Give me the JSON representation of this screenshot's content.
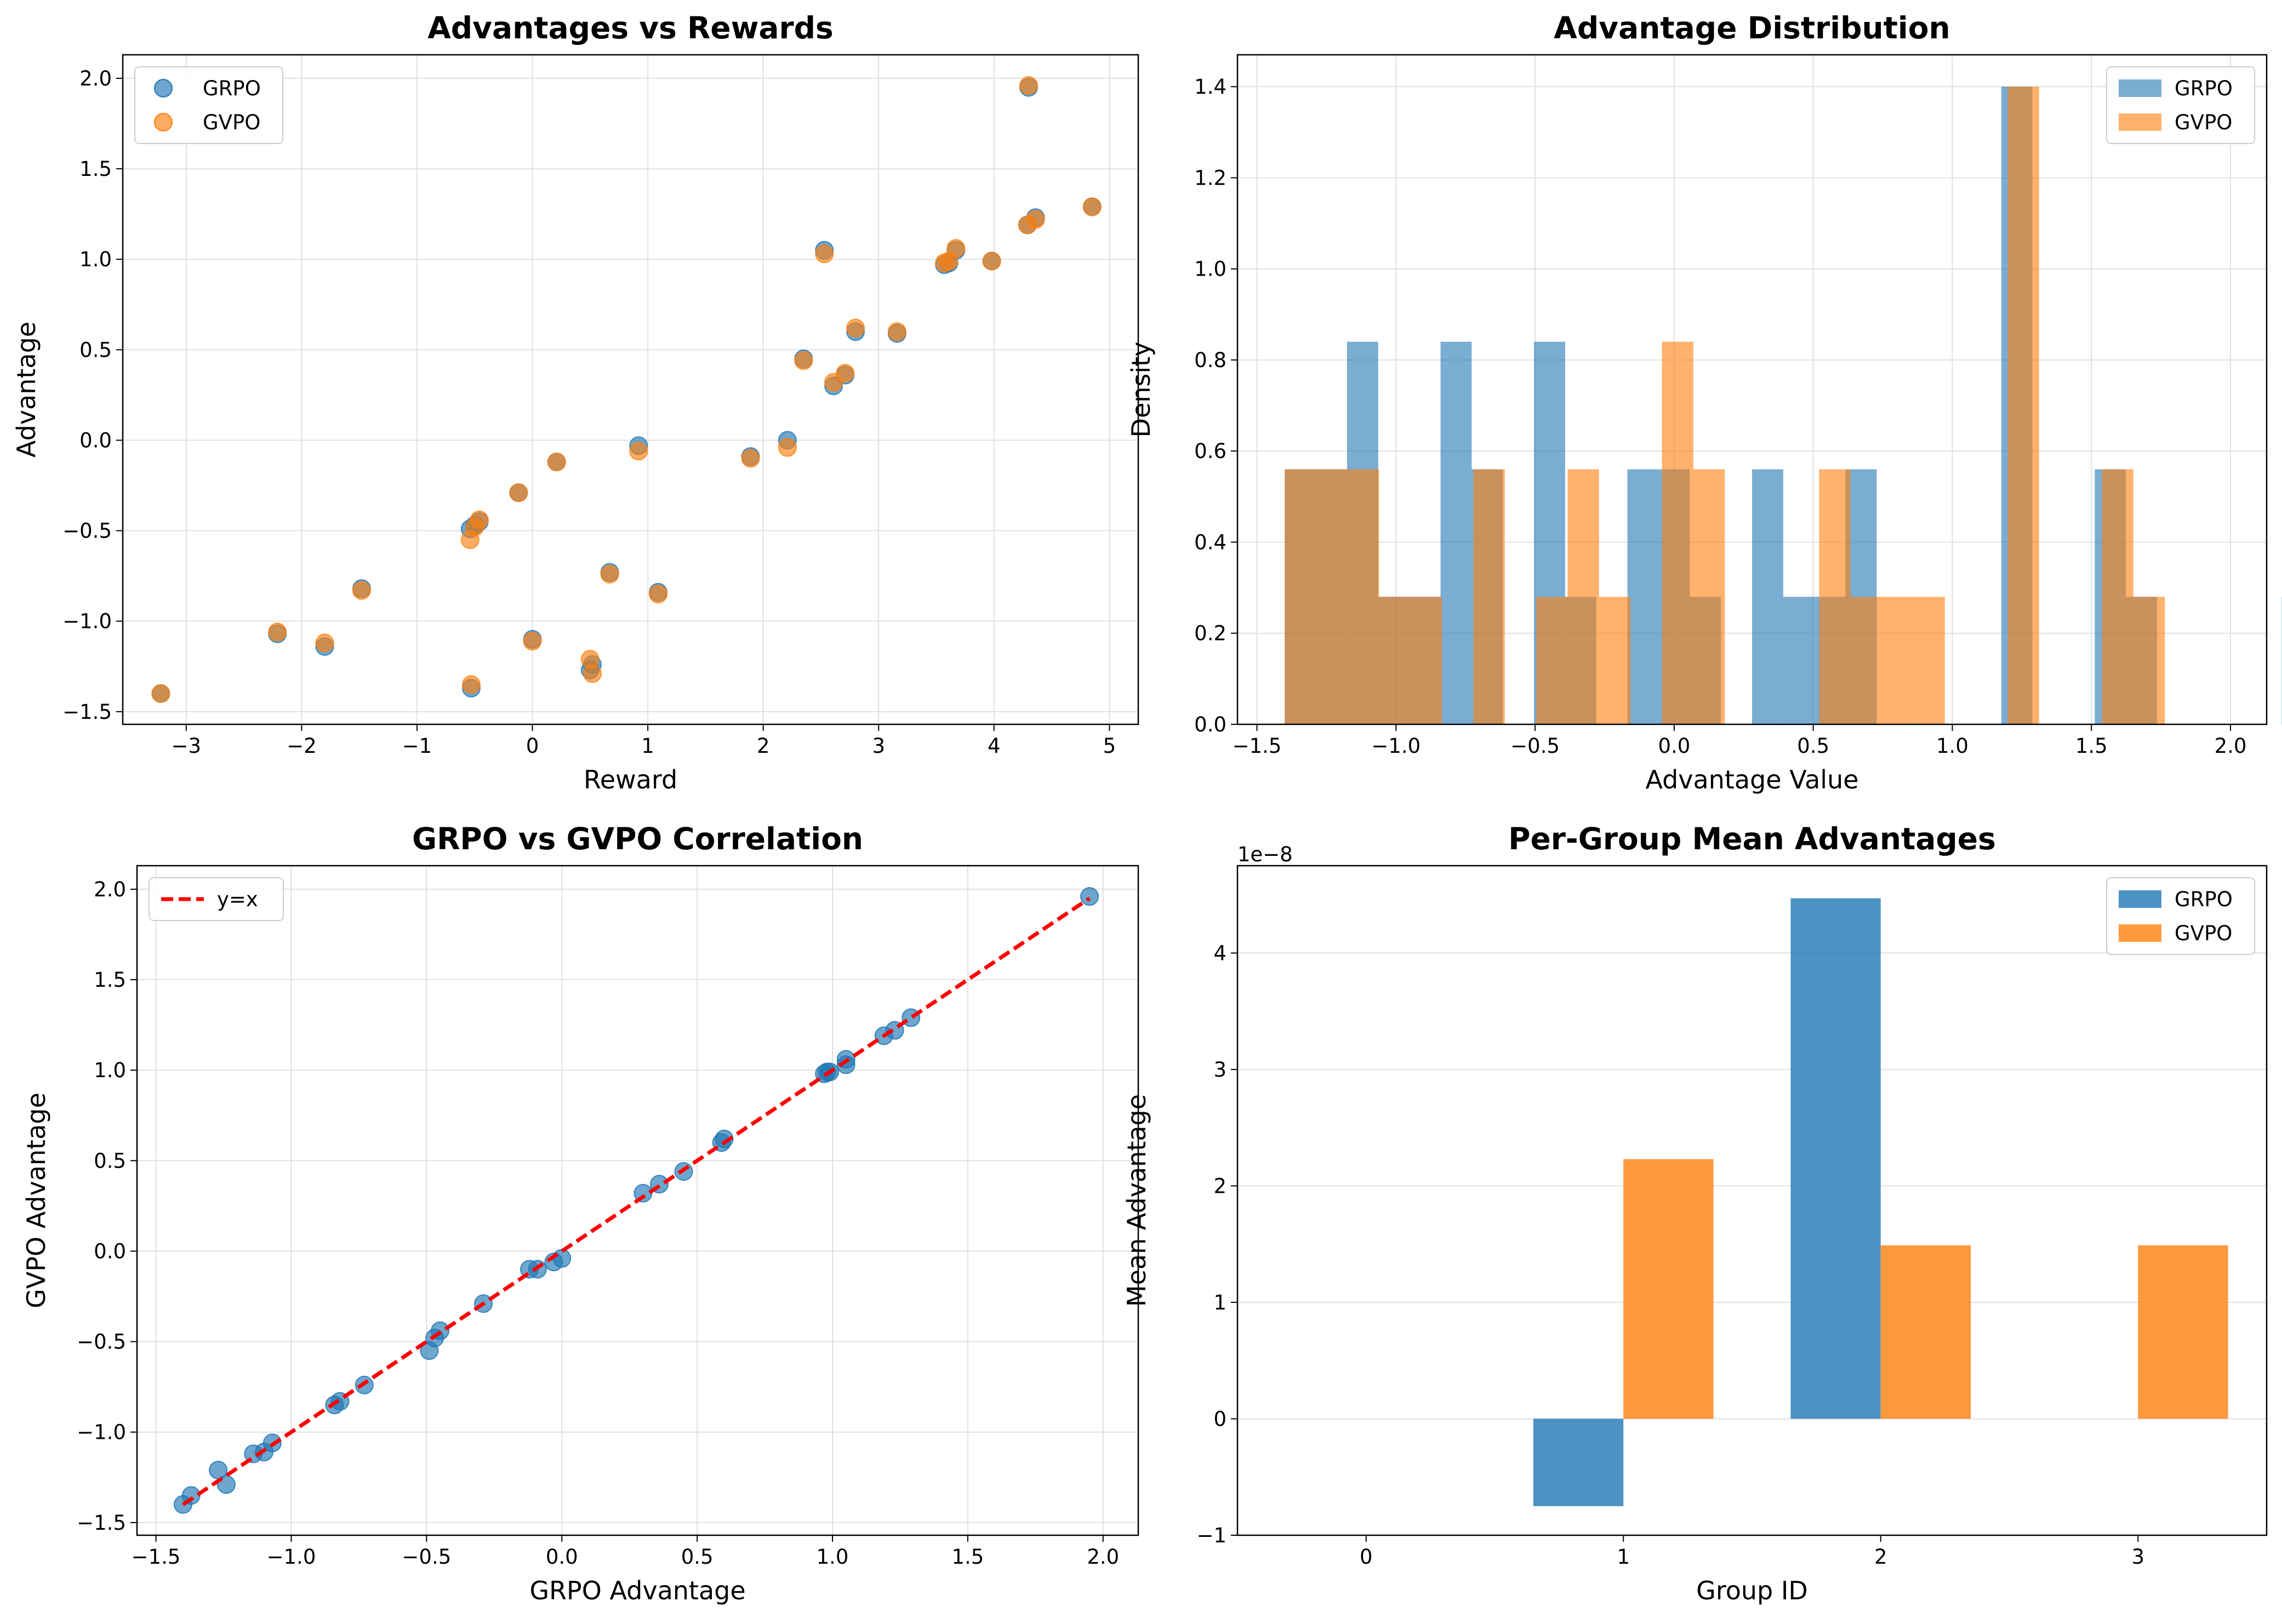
{
  "colors": {
    "grpo": "#1f77b4",
    "gvpo": "#ff7f0e",
    "ref_line": "#ff0000",
    "grid": "#e0e0e0"
  },
  "chart_data": [
    {
      "type": "scatter",
      "title": "Advantages vs Rewards",
      "xlabel": "Reward",
      "ylabel": "Advantage",
      "xlim": [
        -3.55,
        5.25
      ],
      "ylim": [
        -1.57,
        2.13
      ],
      "xticks": [
        -3,
        -2,
        -1,
        0,
        1,
        2,
        3,
        4,
        5
      ],
      "xtick_labels": [
        "−3",
        "−2",
        "−1",
        "0",
        "1",
        "2",
        "3",
        "4",
        "5"
      ],
      "yticks": [
        -1.5,
        -1.0,
        -0.5,
        0.0,
        0.5,
        1.0,
        1.5,
        2.0
      ],
      "ytick_labels": [
        "−1.5",
        "−1.0",
        "−0.5",
        "0.0",
        "0.5",
        "1.0",
        "1.5",
        "2.0"
      ],
      "grid": true,
      "legend": "top-left",
      "series": [
        {
          "name": "GRPO",
          "x": [
            -3.22,
            -2.21,
            -1.8,
            -1.48,
            -0.54,
            -0.5,
            -0.46,
            -0.53,
            -0.12,
            0.0,
            0.21,
            0.5,
            0.52,
            0.67,
            0.92,
            1.09,
            1.89,
            2.21,
            2.35,
            2.53,
            2.61,
            2.71,
            2.8,
            3.16,
            3.57,
            3.61,
            3.67,
            3.98,
            4.29,
            4.3,
            4.36,
            4.85
          ],
          "y": [
            -1.4,
            -1.07,
            -1.14,
            -0.82,
            -0.49,
            -0.47,
            -0.45,
            -1.37,
            -0.29,
            -1.1,
            -0.12,
            -1.27,
            -1.24,
            -0.73,
            -0.03,
            -0.84,
            -0.09,
            0.0,
            0.45,
            1.05,
            0.3,
            0.36,
            0.6,
            0.59,
            0.97,
            0.98,
            1.05,
            0.99,
            1.19,
            1.95,
            1.23,
            1.29
          ]
        },
        {
          "name": "GVPO",
          "x": [
            -3.22,
            -2.21,
            -1.8,
            -1.48,
            -0.54,
            -0.5,
            -0.46,
            -0.53,
            -0.12,
            0.0,
            0.21,
            0.5,
            0.52,
            0.67,
            0.92,
            1.09,
            1.89,
            2.21,
            2.35,
            2.53,
            2.61,
            2.71,
            2.8,
            3.16,
            3.57,
            3.61,
            3.67,
            3.98,
            4.29,
            4.3,
            4.36,
            4.85
          ],
          "y": [
            -1.4,
            -1.06,
            -1.12,
            -0.83,
            -0.55,
            -0.48,
            -0.44,
            -1.35,
            -0.29,
            -1.11,
            -0.12,
            -1.21,
            -1.29,
            -0.74,
            -0.06,
            -0.85,
            -0.1,
            -0.04,
            0.44,
            1.03,
            0.32,
            0.37,
            0.62,
            0.6,
            0.98,
            0.99,
            1.06,
            0.99,
            1.19,
            1.96,
            1.22,
            1.29
          ]
        }
      ]
    },
    {
      "type": "bar",
      "title": "Advantage Distribution",
      "xlabel": "Advantage Value",
      "ylabel": "Density",
      "xlim": [
        -1.57,
        2.13
      ],
      "ylim": [
        0,
        1.47
      ],
      "xticks": [
        -1.5,
        -1.0,
        -0.5,
        0.0,
        0.5,
        1.0,
        1.5,
        2.0
      ],
      "xtick_labels": [
        "−1.5",
        "−1.0",
        "−0.5",
        "0.0",
        "0.5",
        "1.0",
        "1.5",
        "2.0"
      ],
      "yticks": [
        0.0,
        0.2,
        0.4,
        0.6,
        0.8,
        1.0,
        1.2,
        1.4
      ],
      "ytick_labels": [
        "0.0",
        "0.2",
        "0.4",
        "0.6",
        "0.8",
        "1.0",
        "1.2",
        "1.4"
      ],
      "grid": true,
      "legend": "top-right",
      "series": [
        {
          "name": "GRPO",
          "bin_start": -1.4,
          "bin_width": 0.112,
          "values": [
            0.56,
            0.56,
            0.84,
            0.28,
            0.28,
            0.84,
            0.56,
            0.0,
            0.84,
            0.28,
            0.0,
            0.56,
            0.56,
            0.28,
            0.0,
            0.56,
            0.28,
            0.28,
            0.56,
            0.0,
            0.0,
            0.0,
            0.0,
            1.4,
            0.0,
            0.0,
            0.56,
            0.28,
            0.0,
            0.0,
            0.0,
            0.0,
            0.28
          ]
        },
        {
          "name": "GVPO",
          "bin_start": -1.4,
          "bin_width": 0.113,
          "values": [
            0.56,
            0.56,
            0.56,
            0.28,
            0.28,
            0.0,
            0.56,
            0.0,
            0.28,
            0.56,
            0.28,
            0.0,
            0.84,
            0.56,
            0.0,
            0.0,
            0.0,
            0.56,
            0.28,
            0.28,
            0.28,
            0.0,
            0.0,
            1.4,
            0.0,
            0.0,
            0.56,
            0.28,
            0.0,
            0.0,
            0.0,
            0.0,
            0.28
          ]
        }
      ]
    },
    {
      "type": "scatter",
      "title": "GRPO vs GVPO Correlation",
      "xlabel": "GRPO Advantage",
      "ylabel": "GVPO Advantage",
      "xlim": [
        -1.57,
        2.13
      ],
      "ylim": [
        -1.57,
        2.13
      ],
      "xticks": [
        -1.5,
        -1.0,
        -0.5,
        0.0,
        0.5,
        1.0,
        1.5,
        2.0
      ],
      "xtick_labels": [
        "−1.5",
        "−1.0",
        "−0.5",
        "0.0",
        "0.5",
        "1.0",
        "1.5",
        "2.0"
      ],
      "yticks": [
        -1.5,
        -1.0,
        -0.5,
        0.0,
        0.5,
        1.0,
        1.5,
        2.0
      ],
      "ytick_labels": [
        "−1.5",
        "−1.0",
        "−0.5",
        "0.0",
        "0.5",
        "1.0",
        "1.5",
        "2.0"
      ],
      "grid": true,
      "legend": "top-left",
      "ref_line": {
        "name": "y=x",
        "x": [
          -1.4,
          1.95
        ],
        "y": [
          -1.4,
          1.95
        ]
      },
      "series": [
        {
          "name": "",
          "x": [
            -1.4,
            -1.37,
            -1.27,
            -1.24,
            -1.14,
            -1.1,
            -1.07,
            -0.84,
            -0.82,
            -0.73,
            -0.49,
            -0.47,
            -0.45,
            -0.29,
            -0.12,
            -0.09,
            -0.03,
            0.0,
            0.3,
            0.36,
            0.45,
            0.59,
            0.6,
            0.97,
            0.98,
            0.99,
            1.05,
            1.05,
            1.19,
            1.23,
            1.29,
            1.95
          ],
          "y": [
            -1.4,
            -1.35,
            -1.21,
            -1.29,
            -1.12,
            -1.11,
            -1.06,
            -0.85,
            -0.83,
            -0.74,
            -0.55,
            -0.48,
            -0.44,
            -0.29,
            -0.1,
            -0.1,
            -0.06,
            -0.04,
            0.32,
            0.37,
            0.44,
            0.6,
            0.62,
            0.98,
            0.99,
            0.99,
            1.03,
            1.06,
            1.19,
            1.22,
            1.29,
            1.96
          ]
        }
      ]
    },
    {
      "type": "bar",
      "title": "Per-Group Mean Advantages",
      "xlabel": "Group ID",
      "ylabel": "Mean Advantage",
      "offset_text": "1e−8",
      "categories": [
        "0",
        "1",
        "2",
        "3"
      ],
      "xlim": [
        -0.5,
        3.5
      ],
      "ylim": [
        -1.0,
        4.75
      ],
      "yticks": [
        -1,
        0,
        1,
        2,
        3,
        4
      ],
      "ytick_labels": [
        "−1",
        "0",
        "1",
        "2",
        "3",
        "4"
      ],
      "grid": true,
      "legend": "top-right",
      "series": [
        {
          "name": "GRPO",
          "values": [
            0.0,
            -0.75,
            4.47,
            0.0
          ]
        },
        {
          "name": "GVPO",
          "values": [
            0.0,
            2.23,
            1.49,
            1.49
          ]
        }
      ]
    }
  ]
}
